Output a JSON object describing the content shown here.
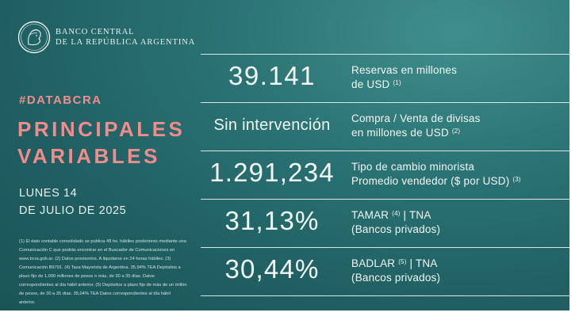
{
  "brand": {
    "line1": "BANCO CENTRAL",
    "line2": "DE LA REPÚBLICA ARGENTINA"
  },
  "hashtag": "#DATABCRA",
  "title": {
    "line1": "PRINCIPALES",
    "line2": "VARIABLES"
  },
  "date": {
    "line1": "LUNES 14",
    "line2": "DE JULIO DE 2025"
  },
  "footnote": "(1) El dato contable consolidado se publica 48 hs. hábiles posteriores mediante una Comunicación C que podrás encontrar en el Buscador de Comunicaciones en www.bcra.gob.ar. (2) Datos provisorios. A liquidarse en 24 horas hábiles. (3) Comunicación B9791. (4) Tasa Mayorista de Argentina. 35,94% TEA Depósitos a plazo fijo de 1.000 millones de pesos o más, de 30 a 35 días. Datos correspondientes al día hábil anterior. (5) Depósitos a plazo fijo de más de un millón de pesos, de 30 a 35 días. 35,04% TEA Datos correspondientes al día hábil anterior.",
  "variables": [
    {
      "value": "39.141",
      "label_line1": "Reservas en millones",
      "label_line2": "de USD",
      "note": "(1)",
      "color": "#f2f7f6"
    },
    {
      "value": "Sin intervención",
      "label_line1": "Compra / Venta de divisas",
      "label_line2": "en millones de USD",
      "note": "(2)",
      "color": "#f2f7f6"
    },
    {
      "value": "1.291,234",
      "label_line1": "Tipo de cambio minorista",
      "label_line2": "Promedio vendedor ($ por USD)",
      "note": "(3)",
      "color": "#f2f7f6"
    },
    {
      "value": "31,13%",
      "label_line1": "TAMAR",
      "note": "(4)",
      "label_suffix": "| TNA",
      "label_line2": "(Bancos privados)",
      "color": "#f2f7f6"
    },
    {
      "value": "30,44%",
      "label_line1": "BADLAR",
      "note": "(5)",
      "label_suffix": "| TNA",
      "label_line2": "(Bancos privados)",
      "color": "#f2f7f6"
    }
  ],
  "colors": {
    "background": "#236a6c",
    "accent": "#f28c8c",
    "text": "#f2f7f6"
  }
}
